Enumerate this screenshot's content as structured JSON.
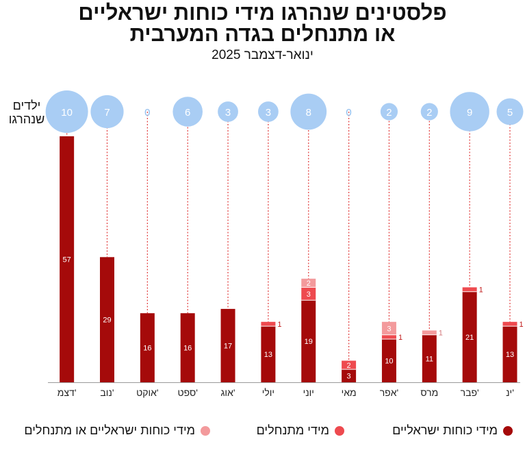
{
  "header": {
    "title_line1": "פלסטינים שנהרגו מידי כוחות ישראליים",
    "title_line2": "או מתנחלים בגדה המערבית",
    "subtitle": "ינואר-דצמבר 2025",
    "children_label_line1": "ילדים",
    "children_label_line2": "שנהרגו"
  },
  "legend": {
    "forces": "מידי כוחות ישראליים",
    "settlers": "מידי מתנחלים",
    "forces_or_settlers": "מידי כוחות ישראליים או מתנחלים"
  },
  "colors": {
    "forces": "#a50a0a",
    "settlers": "#ee4a4f",
    "forces_or_settlers": "#f39a9c",
    "children_bubble": "#a9cdf4",
    "children_zero": "#8dbcee",
    "dotted_line": "#e13b3b"
  },
  "chart_data": {
    "type": "bar",
    "stacked": true,
    "title": "פלסטינים שנהרגו מידי כוחות ישראליים או מתנחלים בגדה המערבית",
    "subtitle": "ינואר-דצמבר 2025",
    "x_direction": "right-to-left",
    "categories": [
      "ינ'",
      "פבר'",
      "מרס",
      "אפר'",
      "מאי",
      "יוני",
      "יולי",
      "אוג'",
      "ספט'",
      "אוקט'",
      "נוב'",
      "דצמ'"
    ],
    "series": [
      {
        "name": "מידי כוחות ישראליים",
        "values": [
          13,
          21,
          11,
          10,
          3,
          19,
          13,
          17,
          16,
          16,
          29,
          57
        ]
      },
      {
        "name": "מידי מתנחלים",
        "values": [
          1,
          1,
          0,
          1,
          2,
          3,
          1,
          0,
          0,
          0,
          0,
          0
        ]
      },
      {
        "name": "מידי כוחות ישראליים או מתנחלים",
        "values": [
          0,
          0,
          1,
          3,
          0,
          2,
          0,
          0,
          0,
          0,
          0,
          0
        ]
      }
    ],
    "children_killed": [
      5,
      9,
      2,
      2,
      0,
      8,
      3,
      3,
      6,
      0,
      7,
      10
    ],
    "ylim": [
      0,
      60
    ],
    "grid": false,
    "legend_position": "bottom"
  }
}
